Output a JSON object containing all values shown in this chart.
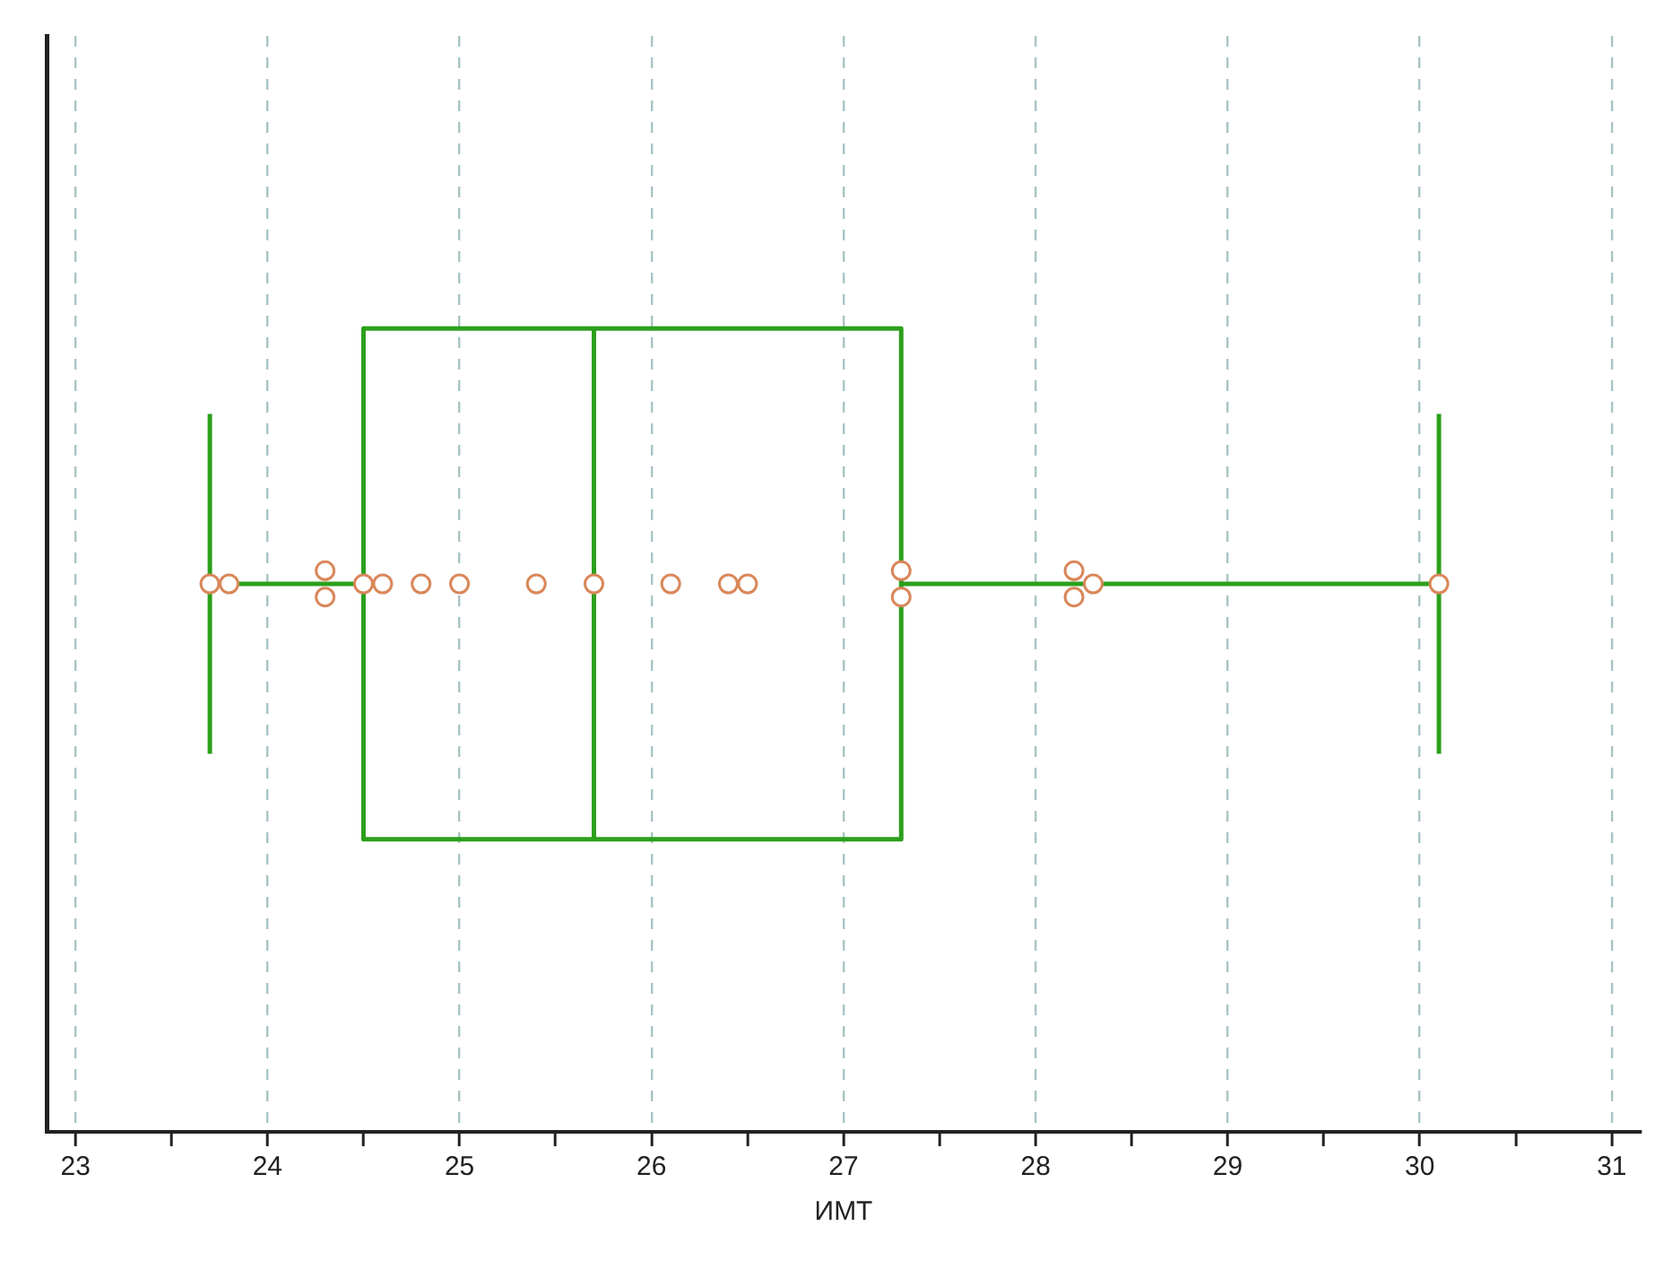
{
  "chart_data": {
    "type": "box",
    "orientation": "horizontal",
    "xlabel": "ИМТ",
    "categories": [
      null
    ],
    "boxes": [
      {
        "low": 23.7,
        "q1": 24.5,
        "median": 25.7,
        "q3": 27.3,
        "high": 30.1
      }
    ],
    "color": "#2ca01c",
    "series": [
      {
        "type": "scatter",
        "color": "#d9875a",
        "marker": "circle",
        "x": [
          null,
          null,
          null,
          null,
          null,
          null,
          null,
          null,
          null,
          null,
          null,
          null,
          null,
          null,
          null,
          null,
          null,
          null,
          null
        ],
        "values": [
          23.7,
          23.8,
          24.3,
          24.3,
          24.5,
          24.6,
          24.8,
          25.0,
          25.4,
          25.7,
          26.1,
          26.4,
          26.5,
          27.3,
          27.3,
          28.2,
          28.2,
          28.3,
          30.1
        ]
      }
    ],
    "xlim": [
      22.85,
      31.15
    ],
    "xticks": [
      23,
      {
        "value": 23.5,
        "label": null
      },
      24,
      {
        "value": 24.5,
        "label": null
      },
      25,
      {
        "value": 25.5,
        "label": null
      },
      26,
      {
        "value": 26.5,
        "label": null
      },
      27,
      {
        "value": 27.5,
        "label": null
      },
      28,
      {
        "value": 28.5,
        "label": null
      },
      29,
      {
        "value": 29.5,
        "label": null
      },
      30,
      {
        "value": 30.5,
        "label": null
      },
      31
    ],
    "grid": "x",
    "legend": false
  }
}
